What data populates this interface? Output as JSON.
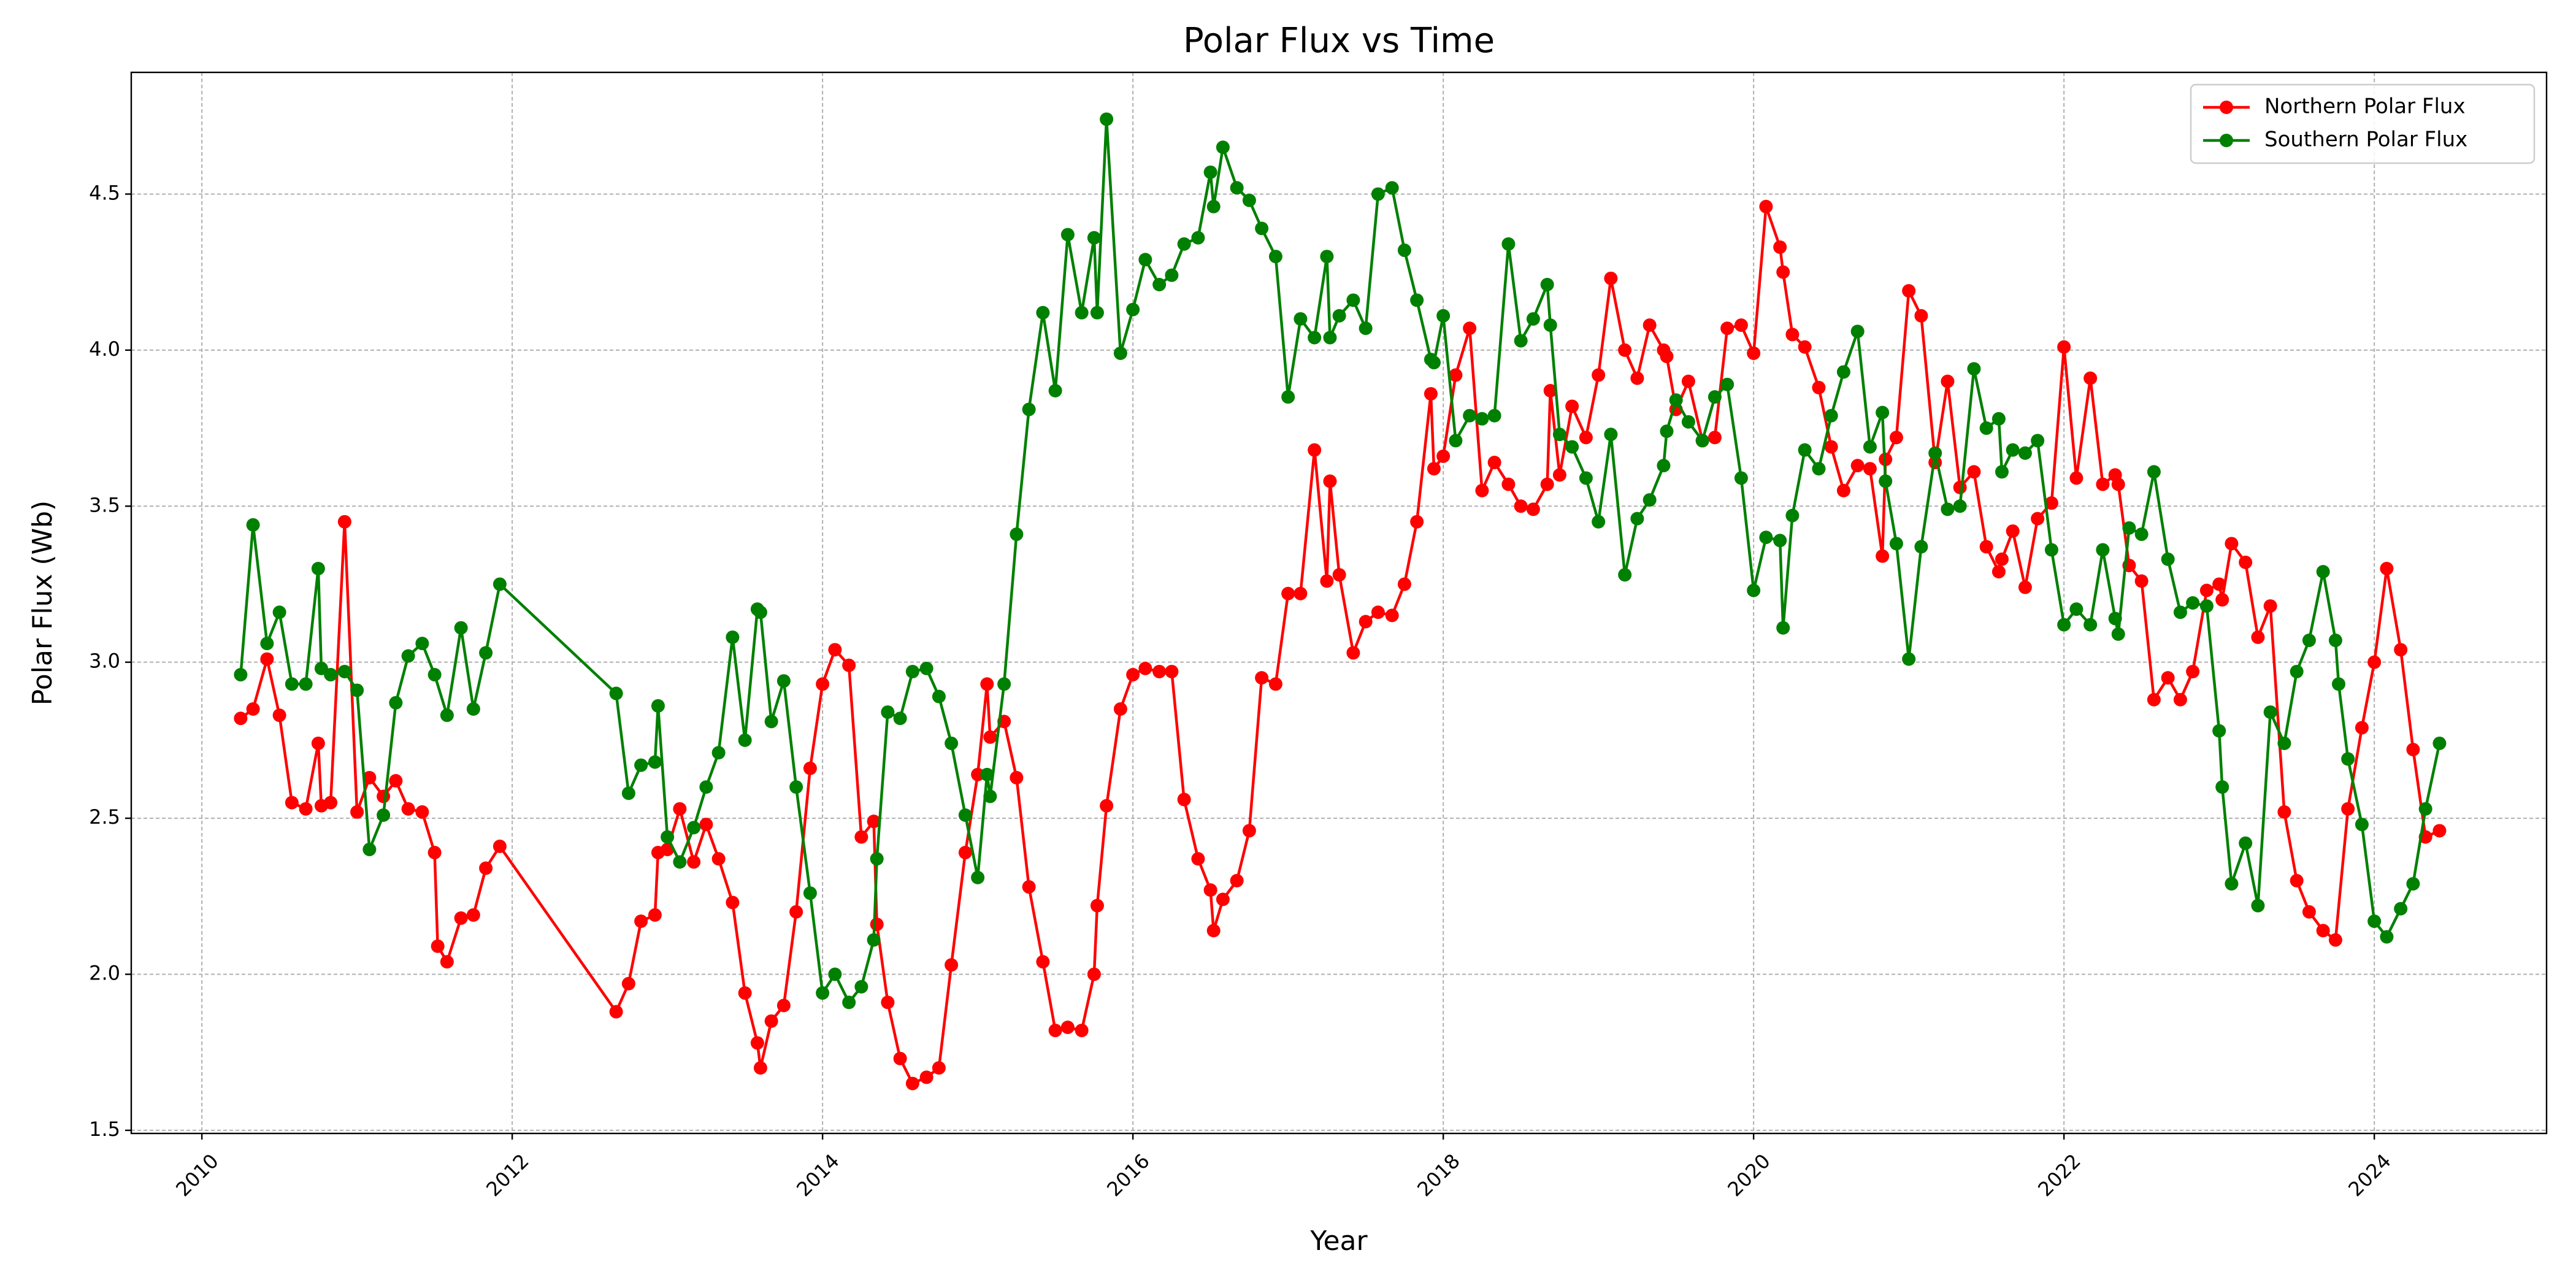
{
  "chart_data": {
    "type": "line",
    "title": "Polar Flux vs Time",
    "x_label": "Year",
    "y_label": "Polar Flux (Wb)",
    "xlim": [
      2009.545,
      2025.11
    ],
    "xticks": [
      2010,
      2012,
      2014,
      2016,
      2018,
      2020,
      2022,
      2024
    ],
    "ylim": [
      1.49,
      4.89
    ],
    "yticks": [
      1.5,
      {
        "value": 2.0,
        "label": "2.0"
      },
      2.5,
      {
        "value": 3.0,
        "label": "3.0"
      },
      3.5,
      {
        "value": 4.0,
        "label": "4.0"
      },
      4.5
    ],
    "grid": true,
    "legend": "upper right",
    "series": [
      {
        "name": "Northern Polar Flux",
        "color": "#ff0000",
        "x": [
          2010.25,
          2010.33,
          2010.42,
          2010.5,
          2010.58,
          2010.67,
          2010.75,
          2010.77,
          2010.83,
          2010.92,
          2011.0,
          2011.08,
          2011.17,
          2011.25,
          2011.33,
          2011.42,
          2011.5,
          2011.52,
          2011.58,
          2011.67,
          2011.75,
          2011.83,
          2011.92,
          2012.67,
          2012.75,
          2012.83,
          2012.92,
          2012.94,
          2013.0,
          2013.08,
          2013.17,
          2013.25,
          2013.33,
          2013.42,
          2013.5,
          2013.58,
          2013.6,
          2013.67,
          2013.75,
          2013.83,
          2013.92,
          2014.0,
          2014.08,
          2014.17,
          2014.25,
          2014.33,
          2014.35,
          2014.42,
          2014.5,
          2014.58,
          2014.67,
          2014.75,
          2014.83,
          2014.92,
          2015.0,
          2015.06,
          2015.08,
          2015.17,
          2015.25,
          2015.33,
          2015.42,
          2015.5,
          2015.58,
          2015.67,
          2015.75,
          2015.77,
          2015.83,
          2015.92,
          2016.0,
          2016.08,
          2016.17,
          2016.25,
          2016.33,
          2016.42,
          2016.5,
          2016.52,
          2016.58,
          2016.67,
          2016.75,
          2016.83,
          2016.92,
          2017.0,
          2017.08,
          2017.17,
          2017.25,
          2017.27,
          2017.33,
          2017.42,
          2017.5,
          2017.58,
          2017.67,
          2017.75,
          2017.83,
          2017.92,
          2017.94,
          2018.0,
          2018.08,
          2018.17,
          2018.25,
          2018.33,
          2018.42,
          2018.5,
          2018.58,
          2018.67,
          2018.69,
          2018.75,
          2018.83,
          2018.92,
          2019.0,
          2019.08,
          2019.17,
          2019.25,
          2019.33,
          2019.42,
          2019.44,
          2019.5,
          2019.58,
          2019.67,
          2019.75,
          2019.83,
          2019.92,
          2020.0,
          2020.08,
          2020.17,
          2020.19,
          2020.25,
          2020.33,
          2020.42,
          2020.5,
          2020.58,
          2020.67,
          2020.75,
          2020.83,
          2020.85,
          2020.92,
          2021.0,
          2021.08,
          2021.17,
          2021.25,
          2021.33,
          2021.42,
          2021.5,
          2021.58,
          2021.6,
          2021.67,
          2021.75,
          2021.83,
          2021.92,
          2022.0,
          2022.08,
          2022.17,
          2022.25,
          2022.33,
          2022.35,
          2022.42,
          2022.5,
          2022.58,
          2022.67,
          2022.75,
          2022.83,
          2022.92,
          2023.0,
          2023.02,
          2023.08,
          2023.17,
          2023.25,
          2023.33,
          2023.42,
          2023.5,
          2023.58,
          2023.67,
          2023.75,
          2023.83,
          2023.92,
          2024.0,
          2024.08,
          2024.17,
          2024.25,
          2024.33,
          2024.42
        ],
        "values": [
          2.82,
          2.85,
          3.01,
          2.83,
          2.55,
          2.53,
          2.74,
          2.54,
          2.55,
          3.45,
          2.52,
          2.63,
          2.57,
          2.62,
          2.53,
          2.52,
          2.39,
          2.09,
          2.04,
          2.18,
          2.19,
          2.34,
          2.41,
          1.88,
          1.97,
          2.17,
          2.19,
          2.39,
          2.4,
          2.53,
          2.36,
          2.48,
          2.37,
          2.23,
          1.94,
          1.78,
          1.7,
          1.85,
          1.9,
          2.2,
          2.66,
          2.93,
          3.04,
          2.99,
          2.44,
          2.49,
          2.16,
          1.91,
          1.73,
          1.65,
          1.67,
          1.7,
          2.03,
          2.39,
          2.64,
          2.93,
          2.76,
          2.81,
          2.63,
          2.28,
          2.04,
          1.82,
          1.83,
          1.82,
          2.0,
          2.22,
          2.54,
          2.85,
          2.96,
          2.98,
          2.97,
          2.97,
          2.56,
          2.37,
          2.27,
          2.14,
          2.24,
          2.3,
          2.46,
          2.95,
          2.93,
          3.22,
          3.22,
          3.68,
          3.26,
          3.58,
          3.28,
          3.03,
          3.13,
          3.16,
          3.15,
          3.25,
          3.45,
          3.86,
          3.62,
          3.66,
          3.92,
          4.07,
          3.55,
          3.64,
          3.57,
          3.5,
          3.49,
          3.57,
          3.87,
          3.6,
          3.82,
          3.72,
          3.92,
          4.23,
          4.0,
          3.91,
          4.08,
          4.0,
          3.98,
          3.81,
          3.9,
          3.71,
          3.72,
          4.07,
          4.08,
          3.99,
          4.46,
          4.33,
          4.25,
          4.05,
          4.01,
          3.88,
          3.69,
          3.55,
          3.63,
          3.62,
          3.34,
          3.65,
          3.72,
          4.19,
          4.11,
          3.64,
          3.9,
          3.56,
          3.61,
          3.37,
          3.29,
          3.33,
          3.42,
          3.24,
          3.46,
          3.51,
          4.01,
          3.59,
          3.91,
          3.57,
          3.6,
          3.57,
          3.31,
          3.26,
          2.88,
          2.95,
          2.88,
          2.97,
          3.23,
          3.25,
          3.2,
          3.38,
          3.32,
          3.08,
          3.18,
          2.52,
          2.3,
          2.2,
          2.14,
          2.11,
          2.53,
          2.79,
          3.0,
          3.3,
          3.04,
          2.72,
          2.44,
          2.46
        ]
      },
      {
        "name": "Southern Polar Flux",
        "color": "#008000",
        "x": [
          2010.25,
          2010.33,
          2010.42,
          2010.5,
          2010.58,
          2010.67,
          2010.75,
          2010.77,
          2010.83,
          2010.92,
          2011.0,
          2011.08,
          2011.17,
          2011.25,
          2011.33,
          2011.42,
          2011.5,
          2011.58,
          2011.67,
          2011.75,
          2011.83,
          2011.92,
          2012.67,
          2012.75,
          2012.83,
          2012.92,
          2012.94,
          2013.0,
          2013.08,
          2013.17,
          2013.25,
          2013.33,
          2013.42,
          2013.5,
          2013.58,
          2013.6,
          2013.67,
          2013.75,
          2013.83,
          2013.92,
          2014.0,
          2014.08,
          2014.17,
          2014.25,
          2014.33,
          2014.35,
          2014.42,
          2014.5,
          2014.58,
          2014.67,
          2014.75,
          2014.83,
          2014.92,
          2015.0,
          2015.06,
          2015.08,
          2015.17,
          2015.25,
          2015.33,
          2015.42,
          2015.5,
          2015.58,
          2015.67,
          2015.75,
          2015.77,
          2015.83,
          2015.92,
          2016.0,
          2016.08,
          2016.17,
          2016.25,
          2016.33,
          2016.42,
          2016.5,
          2016.52,
          2016.58,
          2016.67,
          2016.75,
          2016.83,
          2016.92,
          2017.0,
          2017.08,
          2017.17,
          2017.25,
          2017.27,
          2017.33,
          2017.42,
          2017.5,
          2017.58,
          2017.67,
          2017.75,
          2017.83,
          2017.92,
          2017.94,
          2018.0,
          2018.08,
          2018.17,
          2018.25,
          2018.33,
          2018.42,
          2018.5,
          2018.58,
          2018.67,
          2018.69,
          2018.75,
          2018.83,
          2018.92,
          2019.0,
          2019.08,
          2019.17,
          2019.25,
          2019.33,
          2019.42,
          2019.44,
          2019.5,
          2019.58,
          2019.67,
          2019.75,
          2019.83,
          2019.92,
          2020.0,
          2020.08,
          2020.17,
          2020.19,
          2020.25,
          2020.33,
          2020.42,
          2020.5,
          2020.58,
          2020.67,
          2020.75,
          2020.83,
          2020.85,
          2020.92,
          2021.0,
          2021.08,
          2021.17,
          2021.25,
          2021.33,
          2021.42,
          2021.5,
          2021.58,
          2021.6,
          2021.67,
          2021.75,
          2021.83,
          2021.92,
          2022.0,
          2022.08,
          2022.17,
          2022.25,
          2022.33,
          2022.35,
          2022.42,
          2022.5,
          2022.58,
          2022.67,
          2022.75,
          2022.83,
          2022.92,
          2023.0,
          2023.02,
          2023.08,
          2023.17,
          2023.25,
          2023.33,
          2023.42,
          2023.5,
          2023.58,
          2023.67,
          2023.75,
          2023.77,
          2023.83,
          2023.92,
          2024.0,
          2024.08,
          2024.17,
          2024.25,
          2024.33,
          2024.42
        ],
        "values": [
          2.96,
          3.44,
          3.06,
          3.16,
          2.93,
          2.93,
          3.3,
          2.98,
          2.96,
          2.97,
          2.91,
          2.4,
          2.51,
          2.87,
          3.02,
          3.06,
          2.96,
          2.83,
          3.11,
          2.85,
          3.03,
          3.25,
          2.9,
          2.58,
          2.67,
          2.68,
          2.86,
          2.44,
          2.36,
          2.47,
          2.6,
          2.71,
          3.08,
          2.75,
          3.17,
          3.16,
          2.81,
          2.94,
          2.6,
          2.26,
          1.94,
          2.0,
          1.91,
          1.96,
          2.11,
          2.37,
          2.84,
          2.82,
          2.97,
          2.98,
          2.89,
          2.74,
          2.51,
          2.31,
          2.64,
          2.57,
          2.93,
          3.41,
          3.81,
          4.12,
          3.87,
          4.37,
          4.12,
          4.36,
          4.12,
          4.74,
          3.99,
          4.13,
          4.29,
          4.21,
          4.24,
          4.34,
          4.36,
          4.57,
          4.46,
          4.65,
          4.52,
          4.48,
          4.39,
          4.3,
          3.85,
          4.1,
          4.04,
          4.3,
          4.04,
          4.11,
          4.16,
          4.07,
          4.5,
          4.52,
          4.32,
          4.16,
          3.97,
          3.96,
          4.11,
          3.71,
          3.79,
          3.78,
          3.79,
          4.34,
          4.03,
          4.1,
          4.21,
          4.08,
          3.73,
          3.69,
          3.59,
          3.45,
          3.73,
          3.28,
          3.46,
          3.52,
          3.63,
          3.74,
          3.84,
          3.77,
          3.71,
          3.85,
          3.89,
          3.59,
          3.23,
          3.4,
          3.39,
          3.11,
          3.47,
          3.68,
          3.62,
          3.79,
          3.93,
          4.06,
          3.69,
          3.8,
          3.58,
          3.38,
          3.01,
          3.37,
          3.67,
          3.49,
          3.5,
          3.94,
          3.75,
          3.78,
          3.61,
          3.68,
          3.67,
          3.71,
          3.36,
          3.12,
          3.17,
          3.12,
          3.36,
          3.14,
          3.09,
          3.43,
          3.41,
          3.61,
          3.33,
          3.16,
          3.19,
          3.18,
          2.78,
          2.6,
          2.29,
          2.42,
          2.22,
          2.84,
          2.74,
          2.97,
          3.07,
          3.29,
          3.07,
          2.93,
          2.69,
          2.48,
          2.17,
          2.12,
          2.21,
          2.29,
          2.53,
          2.74
        ]
      }
    ]
  }
}
